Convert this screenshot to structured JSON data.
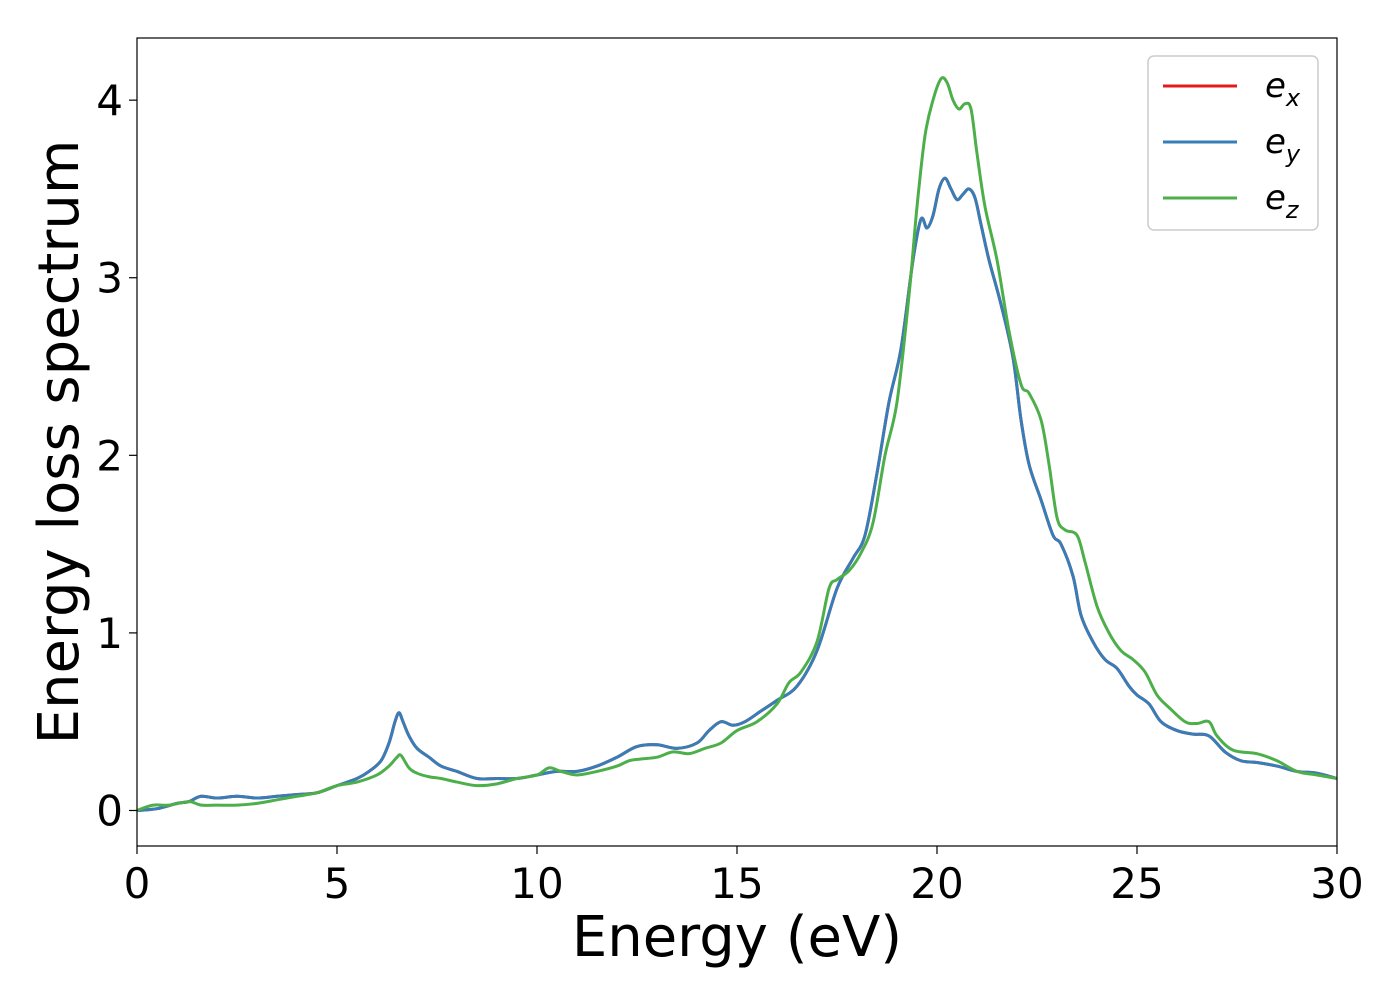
{
  "chart_data": {
    "type": "line",
    "title": "",
    "xlabel": "Energy (eV)",
    "ylabel": "Energy loss spectrum",
    "xlim": [
      0,
      30
    ],
    "ylim": [
      -0.2,
      4.35
    ],
    "xticks": [
      0,
      5,
      10,
      15,
      20,
      25,
      30
    ],
    "xtick_labels": [
      "0",
      "5",
      "10",
      "15",
      "20",
      "25",
      "30"
    ],
    "yticks": [
      0,
      1,
      2,
      3,
      4
    ],
    "ytick_labels": [
      "0",
      "1",
      "2",
      "3",
      "4"
    ],
    "grid": false,
    "legend_position": "top-right",
    "series": [
      {
        "name": "e_x",
        "label_main": "e",
        "label_sub": "x",
        "color": "#e41a1c",
        "x": [
          0,
          0.5,
          1.0,
          1.3,
          1.6,
          2.0,
          2.5,
          3.0,
          3.5,
          4.0,
          4.5,
          5.0,
          5.5,
          5.8,
          6.1,
          6.3,
          6.45,
          6.55,
          6.65,
          6.8,
          7.0,
          7.3,
          7.6,
          8.0,
          8.5,
          9.0,
          9.5,
          10.0,
          10.5,
          11.0,
          11.5,
          12.0,
          12.5,
          13.0,
          13.5,
          14.0,
          14.3,
          14.6,
          14.9,
          15.2,
          15.6,
          16.0,
          16.5,
          17.0,
          17.5,
          17.9,
          18.2,
          18.5,
          18.8,
          19.1,
          19.4,
          19.6,
          19.75,
          19.9,
          20.05,
          20.2,
          20.35,
          20.5,
          20.65,
          20.8,
          20.95,
          21.1,
          21.3,
          21.6,
          21.9,
          22.1,
          22.3,
          22.6,
          22.9,
          23.1,
          23.4,
          23.6,
          23.9,
          24.2,
          24.5,
          24.8,
          25.0,
          25.3,
          25.6,
          26.0,
          26.4,
          26.8,
          27.2,
          27.6,
          28.0,
          28.5,
          29.0,
          29.5,
          30.0
        ],
        "y": [
          0.0,
          0.01,
          0.04,
          0.05,
          0.08,
          0.07,
          0.08,
          0.07,
          0.08,
          0.09,
          0.1,
          0.14,
          0.18,
          0.22,
          0.28,
          0.38,
          0.5,
          0.55,
          0.5,
          0.42,
          0.35,
          0.3,
          0.25,
          0.22,
          0.18,
          0.18,
          0.18,
          0.2,
          0.22,
          0.22,
          0.25,
          0.3,
          0.36,
          0.37,
          0.35,
          0.38,
          0.45,
          0.5,
          0.48,
          0.5,
          0.56,
          0.62,
          0.7,
          0.9,
          1.25,
          1.42,
          1.55,
          1.9,
          2.3,
          2.6,
          3.1,
          3.33,
          3.28,
          3.35,
          3.5,
          3.56,
          3.5,
          3.44,
          3.47,
          3.5,
          3.45,
          3.3,
          3.1,
          2.85,
          2.55,
          2.2,
          1.95,
          1.75,
          1.55,
          1.5,
          1.32,
          1.1,
          0.95,
          0.85,
          0.8,
          0.7,
          0.65,
          0.6,
          0.5,
          0.45,
          0.43,
          0.42,
          0.33,
          0.28,
          0.27,
          0.25,
          0.22,
          0.21,
          0.18
        ]
      },
      {
        "name": "e_y",
        "label_main": "e",
        "label_sub": "y",
        "color": "#377eb8",
        "x": [
          0,
          0.5,
          1.0,
          1.3,
          1.6,
          2.0,
          2.5,
          3.0,
          3.5,
          4.0,
          4.5,
          5.0,
          5.5,
          5.8,
          6.1,
          6.3,
          6.45,
          6.55,
          6.65,
          6.8,
          7.0,
          7.3,
          7.6,
          8.0,
          8.5,
          9.0,
          9.5,
          10.0,
          10.5,
          11.0,
          11.5,
          12.0,
          12.5,
          13.0,
          13.5,
          14.0,
          14.3,
          14.6,
          14.9,
          15.2,
          15.6,
          16.0,
          16.5,
          17.0,
          17.5,
          17.9,
          18.2,
          18.5,
          18.8,
          19.1,
          19.4,
          19.6,
          19.75,
          19.9,
          20.05,
          20.2,
          20.35,
          20.5,
          20.65,
          20.8,
          20.95,
          21.1,
          21.3,
          21.6,
          21.9,
          22.1,
          22.3,
          22.6,
          22.9,
          23.1,
          23.4,
          23.6,
          23.9,
          24.2,
          24.5,
          24.8,
          25.0,
          25.3,
          25.6,
          26.0,
          26.4,
          26.8,
          27.2,
          27.6,
          28.0,
          28.5,
          29.0,
          29.5,
          30.0
        ],
        "y": [
          0.0,
          0.01,
          0.04,
          0.05,
          0.08,
          0.07,
          0.08,
          0.07,
          0.08,
          0.09,
          0.1,
          0.14,
          0.18,
          0.22,
          0.28,
          0.38,
          0.5,
          0.55,
          0.5,
          0.42,
          0.35,
          0.3,
          0.25,
          0.22,
          0.18,
          0.18,
          0.18,
          0.2,
          0.22,
          0.22,
          0.25,
          0.3,
          0.36,
          0.37,
          0.35,
          0.38,
          0.45,
          0.5,
          0.48,
          0.5,
          0.56,
          0.62,
          0.7,
          0.9,
          1.25,
          1.42,
          1.55,
          1.9,
          2.3,
          2.6,
          3.1,
          3.33,
          3.28,
          3.35,
          3.5,
          3.56,
          3.5,
          3.44,
          3.47,
          3.5,
          3.45,
          3.3,
          3.1,
          2.85,
          2.55,
          2.2,
          1.95,
          1.75,
          1.55,
          1.5,
          1.32,
          1.1,
          0.95,
          0.85,
          0.8,
          0.7,
          0.65,
          0.6,
          0.5,
          0.45,
          0.43,
          0.42,
          0.33,
          0.28,
          0.27,
          0.25,
          0.22,
          0.21,
          0.18
        ]
      },
      {
        "name": "e_z",
        "label_main": "e",
        "label_sub": "z",
        "color": "#4daf4a",
        "x": [
          0,
          0.4,
          0.8,
          1.3,
          1.6,
          2.0,
          2.5,
          3.0,
          3.5,
          4.0,
          4.5,
          5.0,
          5.5,
          6.0,
          6.3,
          6.5,
          6.6,
          6.8,
          7.0,
          7.3,
          7.6,
          8.0,
          8.5,
          9.0,
          9.5,
          10.0,
          10.3,
          10.6,
          11.0,
          11.5,
          12.0,
          12.3,
          12.6,
          13.0,
          13.4,
          13.8,
          14.2,
          14.6,
          15.0,
          15.5,
          16.0,
          16.3,
          16.6,
          17.0,
          17.3,
          17.5,
          17.8,
          18.1,
          18.4,
          18.7,
          19.0,
          19.3,
          19.5,
          19.7,
          19.9,
          20.1,
          20.25,
          20.4,
          20.55,
          20.7,
          20.85,
          21.0,
          21.2,
          21.5,
          21.8,
          22.1,
          22.3,
          22.6,
          22.8,
          23.0,
          23.2,
          23.5,
          23.7,
          24.0,
          24.3,
          24.6,
          24.9,
          25.2,
          25.5,
          25.8,
          26.2,
          26.5,
          26.8,
          27.0,
          27.4,
          28.0,
          28.5,
          29.0,
          29.5,
          30.0
        ],
        "y": [
          0.0,
          0.03,
          0.03,
          0.05,
          0.03,
          0.03,
          0.03,
          0.04,
          0.06,
          0.08,
          0.1,
          0.14,
          0.16,
          0.2,
          0.25,
          0.3,
          0.31,
          0.24,
          0.21,
          0.19,
          0.18,
          0.16,
          0.14,
          0.15,
          0.18,
          0.2,
          0.24,
          0.22,
          0.2,
          0.22,
          0.25,
          0.28,
          0.29,
          0.3,
          0.33,
          0.32,
          0.35,
          0.38,
          0.45,
          0.5,
          0.6,
          0.72,
          0.78,
          0.95,
          1.25,
          1.3,
          1.35,
          1.45,
          1.62,
          2.0,
          2.3,
          2.9,
          3.4,
          3.8,
          4.0,
          4.12,
          4.1,
          4.0,
          3.95,
          3.98,
          3.95,
          3.7,
          3.4,
          3.1,
          2.7,
          2.4,
          2.35,
          2.2,
          1.95,
          1.65,
          1.58,
          1.55,
          1.4,
          1.15,
          1.0,
          0.9,
          0.85,
          0.78,
          0.65,
          0.58,
          0.5,
          0.49,
          0.5,
          0.42,
          0.34,
          0.32,
          0.28,
          0.22,
          0.2,
          0.18
        ]
      }
    ]
  }
}
